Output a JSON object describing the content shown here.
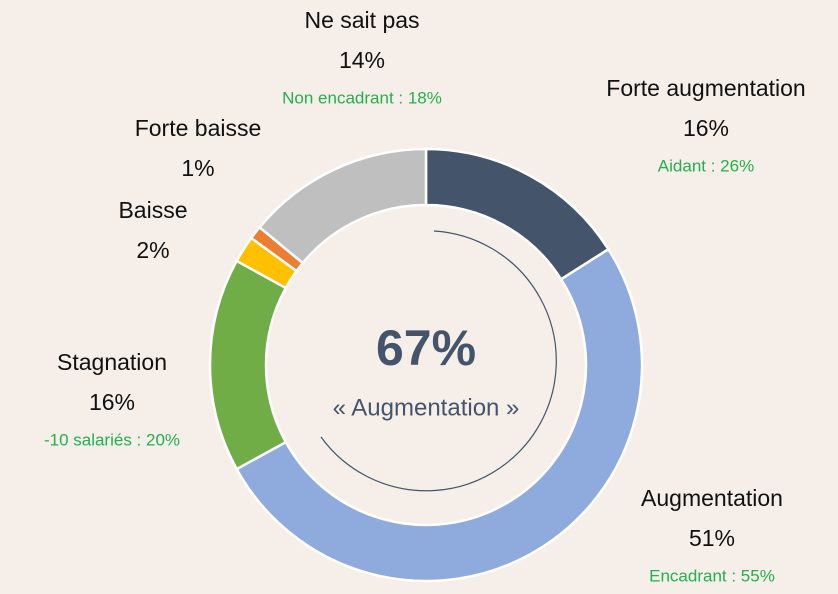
{
  "chart_data": {
    "type": "donut",
    "categories": [
      "Forte augmentation",
      "Augmentation",
      "Stagnation",
      "Baisse",
      "Forte baisse",
      "Ne sait pas"
    ],
    "values": [
      16,
      51,
      16,
      2,
      1,
      14
    ],
    "value_labels": [
      "16%",
      "51%",
      "16%",
      "2%",
      "1%",
      "14%"
    ],
    "colors": [
      "#44546a",
      "#8faadc",
      "#70ad47",
      "#ffc000",
      "#ed7d31",
      "#bfbfbf"
    ],
    "notes": [
      "Aidant : 26%",
      "Encadrant : 55%",
      "-10 salariés : 20%",
      null,
      null,
      "Non encadrant : 18%"
    ],
    "center_value": "67%",
    "center_text": "« Augmentation »"
  }
}
